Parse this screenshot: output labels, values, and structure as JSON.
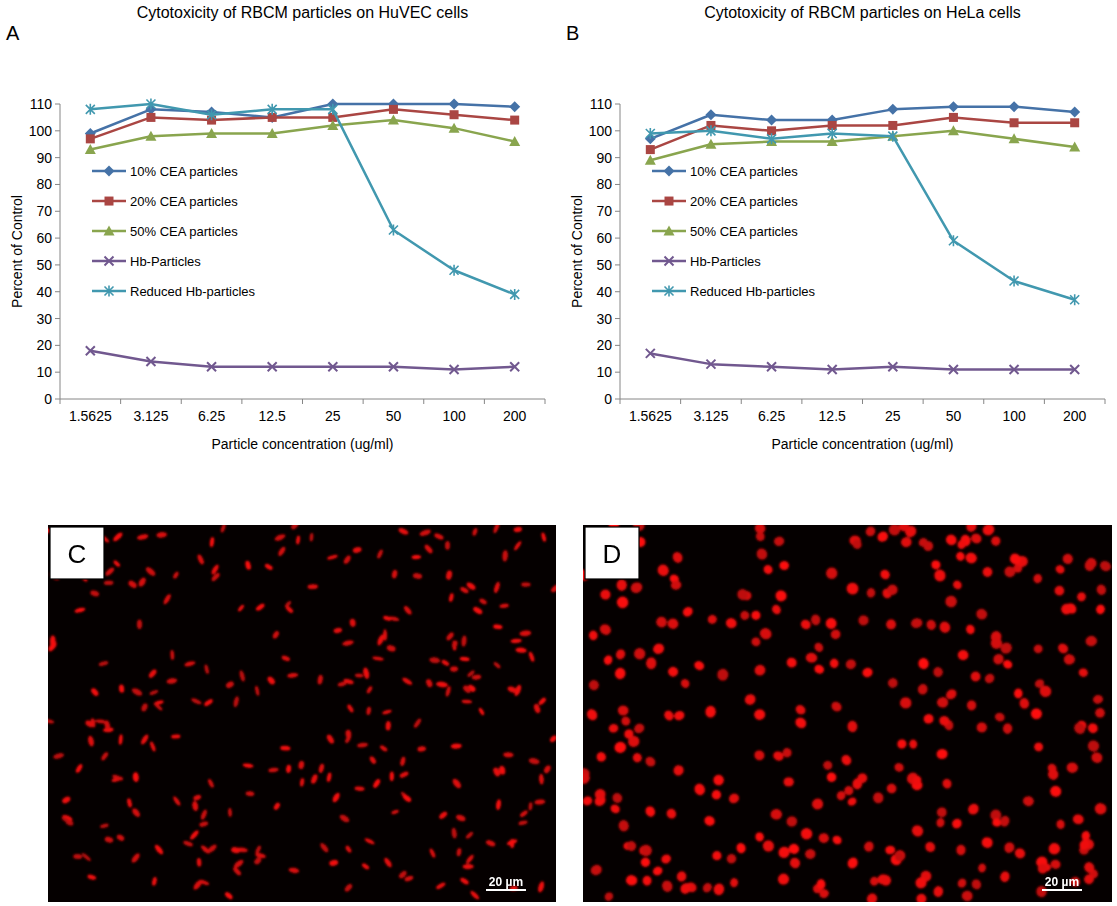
{
  "chart_data": [
    {
      "type": "line",
      "panel_label": "A",
      "title": "Cytotoxicity of RBCM particles on HuVEC cells",
      "x_label": "Particle concentration (ug/ml)",
      "y_label": "Percent of Control",
      "categories": [
        "1.5625",
        "3.125",
        "6.25",
        "12.5",
        "25",
        "50",
        "100",
        "200"
      ],
      "ylim": [
        0,
        110
      ],
      "yticks": [
        0,
        10,
        20,
        30,
        40,
        50,
        60,
        70,
        80,
        90,
        100,
        110
      ],
      "grid": false,
      "legend": "center left",
      "series": [
        {
          "name": "10% CEA particles",
          "color": "#4572a7",
          "marker": "diamond",
          "values": [
            99,
            108,
            107,
            105,
            110,
            110,
            110,
            109
          ]
        },
        {
          "name": "20% CEA particles",
          "color": "#aa4643",
          "marker": "square",
          "values": [
            97,
            105,
            104,
            105,
            105,
            108,
            106,
            104
          ]
        },
        {
          "name": "50% CEA particles",
          "color": "#89a54e",
          "marker": "triangle",
          "values": [
            93,
            98,
            99,
            99,
            102,
            104,
            101,
            96
          ]
        },
        {
          "name": "Hb-Particles",
          "color": "#71588f",
          "marker": "x",
          "values": [
            18,
            14,
            12,
            12,
            12,
            12,
            11,
            12
          ]
        },
        {
          "name": "Reduced Hb-particles",
          "color": "#4198af",
          "marker": "star",
          "values": [
            108,
            110,
            106,
            108,
            108,
            63,
            48,
            39
          ]
        }
      ]
    },
    {
      "type": "line",
      "panel_label": "B",
      "title": "Cytotoxicity of RBCM particles on HeLa cells",
      "x_label": "Particle concentration (ug/ml)",
      "y_label": "Percent of Control",
      "categories": [
        "1.5625",
        "3.125",
        "6.25",
        "12.5",
        "25",
        "50",
        "100",
        "200"
      ],
      "ylim": [
        0,
        110
      ],
      "yticks": [
        0,
        10,
        20,
        30,
        40,
        50,
        60,
        70,
        80,
        90,
        100,
        110
      ],
      "grid": false,
      "legend": "center left",
      "series": [
        {
          "name": "10% CEA particles",
          "color": "#4572a7",
          "marker": "diamond",
          "values": [
            97,
            106,
            104,
            104,
            108,
            109,
            109,
            107
          ]
        },
        {
          "name": "20% CEA particles",
          "color": "#aa4643",
          "marker": "square",
          "values": [
            93,
            102,
            100,
            102,
            102,
            105,
            103,
            103
          ]
        },
        {
          "name": "50% CEA particles",
          "color": "#89a54e",
          "marker": "triangle",
          "values": [
            89,
            95,
            96,
            96,
            98,
            100,
            97,
            94
          ]
        },
        {
          "name": "Hb-Particles",
          "color": "#71588f",
          "marker": "x",
          "values": [
            17,
            13,
            12,
            11,
            12,
            11,
            11,
            11
          ]
        },
        {
          "name": "Reduced Hb-particles",
          "color": "#4198af",
          "marker": "star",
          "values": [
            99,
            100,
            97,
            99,
            98,
            59,
            44,
            37
          ]
        }
      ]
    }
  ],
  "panels": [
    {
      "label": "C",
      "scale_bar": "20 µm"
    },
    {
      "label": "D",
      "scale_bar": "20 µm"
    }
  ]
}
